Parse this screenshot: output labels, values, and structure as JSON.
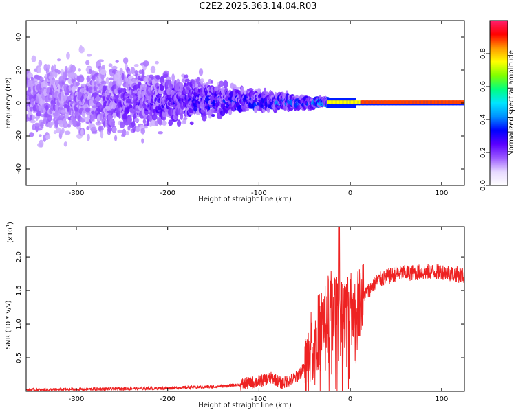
{
  "page_title": "C2E2.2025.363.14.04.R03",
  "chart_data": [
    {
      "type": "heatmap",
      "title": "C2E2.2025.363.14.04.R03",
      "xlabel": "Height of straight line (km)",
      "ylabel": "Frequency (Hz)",
      "xlim": [
        -355,
        125
      ],
      "ylim": [
        -50,
        50
      ],
      "xticks": [
        -300,
        -200,
        -100,
        0,
        100
      ],
      "yticks": [
        -40,
        -20,
        0,
        20,
        40
      ],
      "colorbar": {
        "label": "Normalized spectral amplitude",
        "range": [
          0,
          1
        ],
        "ticks": [
          "0.0",
          "0.2",
          "0.4",
          "0.6",
          "0.8"
        ],
        "colors": [
          "#ffffff",
          "#e6d8ff",
          "#9b59ff",
          "#5a00ff",
          "#0000ff",
          "#0090ff",
          "#00e5ff",
          "#00ff80",
          "#80ff00",
          "#ffff00",
          "#ff9900",
          "#ff0000",
          "#ff1f6e"
        ]
      },
      "description_points": [
        {
          "x_km": -300,
          "center_hz": 3,
          "spread_hz": 45,
          "level": 0.15
        },
        {
          "x_km": -200,
          "center_hz": 3,
          "spread_hz": 30,
          "level": 0.3
        },
        {
          "x_km": -100,
          "center_hz": 2,
          "spread_hz": 10,
          "level": 0.45
        },
        {
          "x_km": -50,
          "center_hz": 0,
          "spread_hz": 6,
          "level": 0.5
        },
        {
          "x_km": -15,
          "center_hz": 1,
          "spread_hz": 2,
          "level": 0.9
        },
        {
          "x_km": 125,
          "center_hz": 1,
          "spread_hz": 1,
          "level": 0.95
        }
      ]
    },
    {
      "type": "line",
      "xlabel": "Height of straight line (km)",
      "ylabel": "SNR (10 * v/v)",
      "scale_label": "(x10",
      "scale_exponent": "4",
      "xlim": [
        -355,
        125
      ],
      "ylim": [
        0,
        2.45
      ],
      "xticks": [
        -300,
        -200,
        -100,
        0,
        100
      ],
      "yticks": [
        "0.5",
        "1.0",
        "1.5",
        "2.0"
      ],
      "color": "#ee2222",
      "x": [
        -355,
        -300,
        -250,
        -200,
        -150,
        -120,
        -100,
        -85,
        -75,
        -60,
        -50,
        -40,
        -30,
        -20,
        -12,
        -5,
        0,
        10,
        20,
        30,
        50,
        75,
        100,
        125
      ],
      "y": [
        0.02,
        0.03,
        0.04,
        0.05,
        0.07,
        0.1,
        0.15,
        0.2,
        0.12,
        0.2,
        0.35,
        0.75,
        1.05,
        1.3,
        1.2,
        1.15,
        1.2,
        1.35,
        1.5,
        1.65,
        1.75,
        1.77,
        1.78,
        1.72
      ],
      "spike": {
        "x": -12,
        "y": 2.45
      }
    }
  ]
}
